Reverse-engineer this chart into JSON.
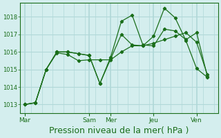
{
  "background_color": "#d4eeee",
  "grid_color": "#b0d8d8",
  "line_color": "#1a6e1a",
  "marker_color": "#1a6e1a",
  "xlabel": "Pression niveau de la mer( hPa )",
  "xlabel_fontsize": 9,
  "yticks": [
    1013,
    1014,
    1015,
    1016,
    1017,
    1018
  ],
  "ylim": [
    1012.5,
    1018.8
  ],
  "xtick_labels": [
    "Mar",
    "Sam",
    "Mer",
    "Jeu",
    "Ven"
  ],
  "xtick_positions": [
    0,
    3,
    4,
    6,
    8
  ],
  "vlines": [
    0,
    3,
    4,
    6,
    8
  ],
  "series": [
    {
      "x": [
        0,
        0.5,
        1.0,
        1.5,
        2.0,
        2.5,
        3.0,
        3.5,
        4.0,
        4.5,
        5.0,
        5.5,
        6.0,
        6.5,
        7.0,
        7.5,
        8.0,
        8.5
      ],
      "y": [
        1013.0,
        1013.1,
        1015.0,
        1016.0,
        1016.0,
        1015.9,
        1015.8,
        1014.2,
        1015.7,
        1017.75,
        1018.1,
        1016.4,
        1016.35,
        1017.3,
        1017.2,
        1016.7,
        1017.1,
        1014.6
      ]
    },
    {
      "x": [
        0,
        0.5,
        1.0,
        1.5,
        2.0,
        2.5,
        3.0,
        3.5,
        4.0,
        4.5,
        5.0,
        5.5,
        6.0,
        6.5,
        7.0,
        7.5,
        8.0,
        8.5
      ],
      "y": [
        1013.0,
        1013.1,
        1015.0,
        1016.0,
        1016.0,
        1015.9,
        1015.8,
        1014.2,
        1015.6,
        1017.0,
        1016.4,
        1016.35,
        1016.9,
        1018.5,
        1017.95,
        1016.65,
        1015.05,
        1014.55
      ]
    },
    {
      "x": [
        0,
        0.5,
        1.0,
        1.5,
        2.0,
        2.5,
        3.0,
        3.5,
        4.0,
        4.5,
        5.0,
        5.5,
        6.0,
        6.5,
        7.0,
        7.5,
        8.0,
        8.5
      ],
      "y": [
        1013.0,
        1013.1,
        1015.0,
        1015.95,
        1015.85,
        1015.5,
        1015.55,
        1015.55,
        1015.55,
        1016.0,
        1016.35,
        1016.35,
        1016.5,
        1016.7,
        1016.9,
        1017.1,
        1016.55,
        1014.7
      ]
    }
  ]
}
